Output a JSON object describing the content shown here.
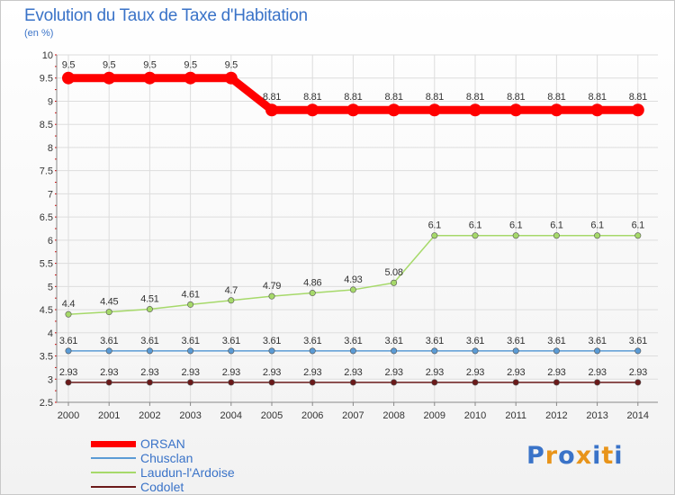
{
  "header": {
    "title": "Evolution du Taux de Taxe d'Habitation",
    "subtitle": "(en %)"
  },
  "logo": {
    "letters": [
      "P",
      "r",
      "o",
      "x",
      "i",
      "t",
      "i"
    ],
    "colors": [
      "#3a73c8",
      "#e8941a",
      "#3a73c8",
      "#e8941a",
      "#3a73c8",
      "#e8941a",
      "#3a73c8"
    ]
  },
  "chart_data": {
    "type": "line",
    "title": "Evolution du Taux de Taxe d'Habitation",
    "subtitle": "(en %)",
    "xlabel": "",
    "ylabel": "",
    "x": [
      "2000",
      "2001",
      "2002",
      "2003",
      "2004",
      "2005",
      "2006",
      "2007",
      "2008",
      "2009",
      "2010",
      "2011",
      "2012",
      "2013",
      "2014"
    ],
    "ylim": [
      2.5,
      10
    ],
    "yticks": [
      "2.5",
      "3",
      "3.5",
      "4",
      "4.5",
      "5",
      "5.5",
      "6",
      "6.5",
      "7",
      "7.5",
      "8",
      "8.5",
      "9",
      "9.5",
      "10"
    ],
    "grid": true,
    "legend_position": "bottom-left",
    "series": [
      {
        "name": "ORSAN",
        "color": "#ff0000",
        "thick": true,
        "values": [
          9.5,
          9.5,
          9.5,
          9.5,
          9.5,
          8.81,
          8.81,
          8.81,
          8.81,
          8.81,
          8.81,
          8.81,
          8.81,
          8.81,
          8.81
        ],
        "labels": [
          "9.5",
          "9.5",
          "9.5",
          "9.5",
          "9.5",
          "8.81",
          "8.81",
          "8.81",
          "8.81",
          "8.81",
          "8.81",
          "8.81",
          "8.81",
          "8.81",
          "8.81"
        ]
      },
      {
        "name": "Chusclan",
        "color": "#5b9bd5",
        "thick": false,
        "values": [
          3.61,
          3.61,
          3.61,
          3.61,
          3.61,
          3.61,
          3.61,
          3.61,
          3.61,
          3.61,
          3.61,
          3.61,
          3.61,
          3.61,
          3.61
        ],
        "labels": [
          "3.61",
          "3.61",
          "3.61",
          "3.61",
          "3.61",
          "3.61",
          "3.61",
          "3.61",
          "3.61",
          "3.61",
          "3.61",
          "3.61",
          "3.61",
          "3.61",
          "3.61"
        ]
      },
      {
        "name": "Laudun-l'Ardoise",
        "color": "#a6d96a",
        "thick": false,
        "values": [
          4.4,
          4.45,
          4.51,
          4.61,
          4.7,
          4.79,
          4.86,
          4.93,
          5.08,
          6.1,
          6.1,
          6.1,
          6.1,
          6.1,
          6.1
        ],
        "labels": [
          "4.4",
          "4.45",
          "4.51",
          "4.61",
          "4.7",
          "4.79",
          "4.86",
          "4.93",
          "5.08",
          "6.1",
          "6.1",
          "6.1",
          "6.1",
          "6.1",
          "6.1"
        ]
      },
      {
        "name": "Codolet",
        "color": "#6b1a1a",
        "thick": false,
        "values": [
          2.93,
          2.93,
          2.93,
          2.93,
          2.93,
          2.93,
          2.93,
          2.93,
          2.93,
          2.93,
          2.93,
          2.93,
          2.93,
          2.93,
          2.93
        ],
        "labels": [
          "2.93",
          "2.93",
          "2.93",
          "2.93",
          "2.93",
          "2.93",
          "2.93",
          "2.93",
          "2.93",
          "2.93",
          "2.93",
          "2.93",
          "2.93",
          "2.93",
          "2.93"
        ]
      }
    ]
  }
}
